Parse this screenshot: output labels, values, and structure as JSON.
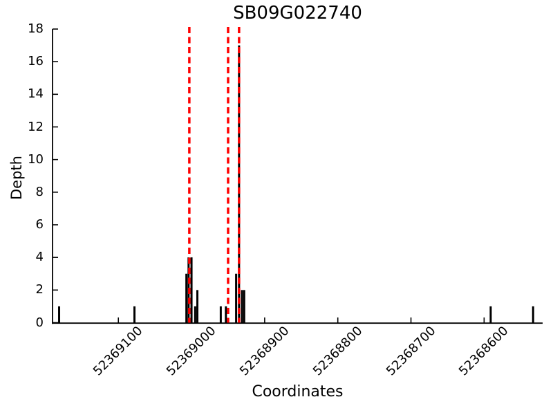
{
  "figure": {
    "background": "#ffffff",
    "text_color": "#000000"
  },
  "chart_data": {
    "type": "bar",
    "subtype": "read-depth-impulse-plot",
    "title": "SB09G022740",
    "xlabel": "Coordinates",
    "ylabel": "Depth",
    "grid": false,
    "legend": null,
    "x_axis_reversed": true,
    "xlim": [
      52369190,
      52368520
    ],
    "ylim": [
      0,
      18
    ],
    "x_ticks": [
      52369100,
      52369000,
      52368900,
      52368800,
      52368700,
      52368600
    ],
    "y_ticks": [
      0,
      2,
      4,
      6,
      8,
      10,
      12,
      14,
      16,
      18
    ],
    "bar_color": "#000000",
    "axis_color": "#000000",
    "bars": [
      {
        "x": 52369181,
        "depth": 1
      },
      {
        "x": 52369078,
        "depth": 1
      },
      {
        "x": 52369007,
        "depth": 3
      },
      {
        "x": 52369004,
        "depth": 4
      },
      {
        "x": 52369000,
        "depth": 4
      },
      {
        "x": 52368995,
        "depth": 1
      },
      {
        "x": 52368992,
        "depth": 2
      },
      {
        "x": 52368960,
        "depth": 1
      },
      {
        "x": 52368953,
        "depth": 1
      },
      {
        "x": 52368939,
        "depth": 3
      },
      {
        "x": 52368935,
        "depth": 17
      },
      {
        "x": 52368931,
        "depth": 2
      },
      {
        "x": 52368928,
        "depth": 2
      },
      {
        "x": 52368591,
        "depth": 1
      },
      {
        "x": 52368533,
        "depth": 1
      }
    ],
    "vlines": {
      "color": "#ff0000",
      "style": "dashed",
      "positions": [
        52369003,
        52368950,
        52368935
      ]
    }
  }
}
